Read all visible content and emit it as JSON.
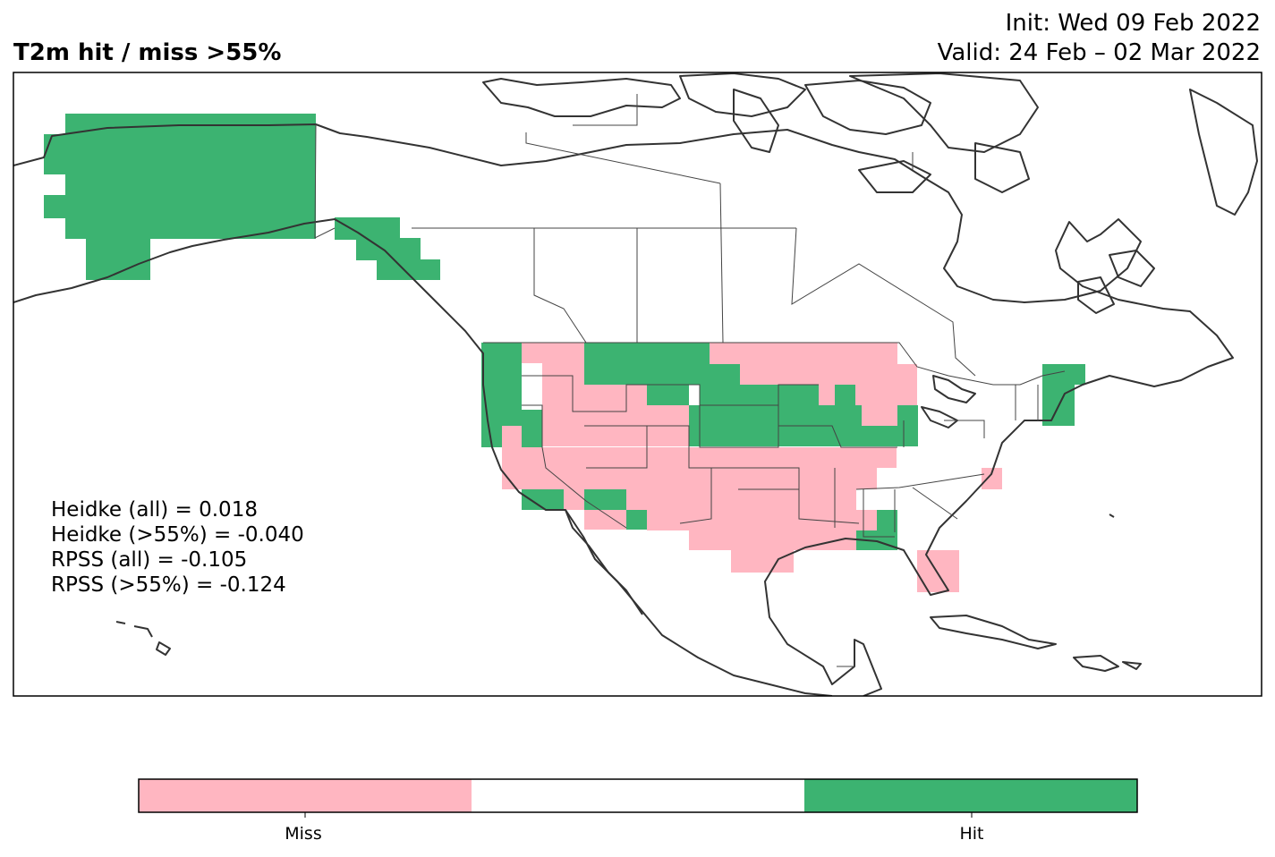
{
  "title": "T2m hit / miss  >55%",
  "init_label": "Init: Wed 09 Feb 2022",
  "valid_label": "Valid: 24 Feb – 02 Mar 2022",
  "scores": [
    "Heidke (all) = 0.018",
    "Heidke (>55%) = -0.040",
    "RPSS (all) = -0.105",
    "RPSS (>55%) = -0.124"
  ],
  "colorbar": {
    "labels": [
      "Miss",
      "Hit"
    ],
    "colors": {
      "miss": "#ffb6c1",
      "neutral": "#ffffff",
      "hit": "#3cb371"
    }
  },
  "colors": {
    "miss": "#ffb6c1",
    "hit": "#3cb371",
    "coast": "#333333",
    "border": "#444444"
  }
}
